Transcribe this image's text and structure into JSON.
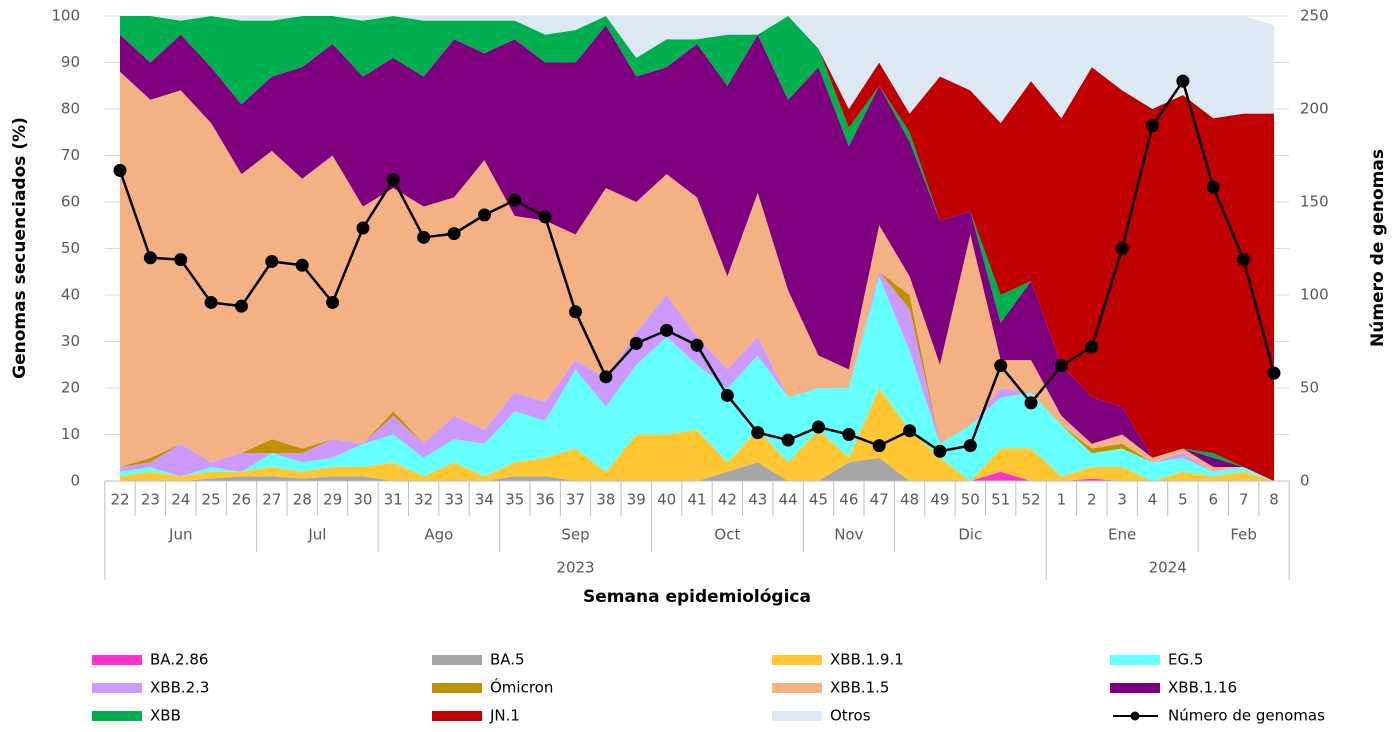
{
  "chart_data": {
    "type": "stacked_area",
    "ylabel": "Genomas secuenciados (%)",
    "y2label": "Número de genomas",
    "xlabel": "Semana epidemiológica",
    "categories": [
      "22",
      "23",
      "24",
      "25",
      "26",
      "27",
      "28",
      "29",
      "30",
      "31",
      "32",
      "33",
      "34",
      "35",
      "36",
      "37",
      "38",
      "39",
      "40",
      "41",
      "42",
      "43",
      "44",
      "45",
      "46",
      "47",
      "48",
      "49",
      "50",
      "51",
      "52",
      "1",
      "2",
      "3",
      "4",
      "5",
      "6",
      "7",
      "8"
    ],
    "months": [
      "Jun",
      "Jun",
      "Jun",
      "Jun",
      "Jun",
      "Jul",
      "Jul",
      "Jul",
      "Jul",
      "Ago",
      "Ago",
      "Ago",
      "Ago",
      "Sep",
      "Sep",
      "Sep",
      "Sep",
      "Sep",
      "Oct",
      "Oct",
      "Oct",
      "Oct",
      "Oct",
      "Nov",
      "Nov",
      "Nov",
      "Dic",
      "Dic",
      "Dic",
      "Dic",
      "Dic",
      "Ene",
      "Ene",
      "Ene",
      "Ene",
      "Ene",
      "Feb",
      "Feb",
      "Feb"
    ],
    "years": [
      "2023",
      "2023",
      "2023",
      "2023",
      "2023",
      "2023",
      "2023",
      "2023",
      "2023",
      "2023",
      "2023",
      "2023",
      "2023",
      "2023",
      "2023",
      "2023",
      "2023",
      "2023",
      "2023",
      "2023",
      "2023",
      "2023",
      "2023",
      "2023",
      "2023",
      "2023",
      "2023",
      "2023",
      "2023",
      "2023",
      "2023",
      "2024",
      "2024",
      "2024",
      "2024",
      "2024",
      "2024",
      "2024",
      "2024"
    ],
    "ylim": [
      0,
      100
    ],
    "yticks": [
      0,
      10,
      20,
      30,
      40,
      50,
      60,
      70,
      80,
      90,
      100
    ],
    "y2lim": [
      0,
      250
    ],
    "y2ticks": [
      0,
      50,
      100,
      150,
      200,
      250
    ],
    "grid": true,
    "legend": "bottom",
    "series": [
      {
        "name": "BA.2.86",
        "color": "#ff33cc",
        "values": [
          0,
          0,
          0,
          0,
          0,
          0,
          0,
          0,
          0,
          0,
          0,
          0,
          0,
          0,
          0,
          0,
          0,
          0,
          0,
          0,
          0,
          0,
          0,
          0,
          0,
          0,
          0,
          0,
          0,
          2,
          0,
          0,
          0.5,
          0,
          0,
          0,
          0,
          0,
          0
        ]
      },
      {
        "name": "BA.5",
        "color": "#a6a6a6",
        "values": [
          0,
          0,
          0,
          0.5,
          1,
          1,
          0.5,
          1,
          1,
          0,
          0,
          0,
          0,
          1,
          1,
          0,
          0,
          0,
          0,
          0,
          2,
          4,
          0,
          0,
          4,
          5,
          0,
          0,
          0,
          0,
          0,
          0,
          0,
          0,
          0,
          0,
          0,
          0,
          0
        ]
      },
      {
        "name": "XBB.1.9.1",
        "color": "#ffc832",
        "values": [
          1,
          2,
          1,
          1.5,
          1,
          2,
          1.5,
          2,
          2,
          4,
          1,
          4,
          1,
          3,
          4,
          7,
          2,
          10,
          10,
          11,
          2,
          7,
          4,
          11,
          1,
          15,
          11,
          5,
          0,
          5,
          7,
          1,
          2.5,
          3,
          0,
          2,
          1,
          2,
          0
        ]
      },
      {
        "name": "EG.5",
        "color": "#66ffff",
        "values": [
          1,
          1,
          0,
          1,
          0,
          3,
          2,
          2,
          5,
          6,
          4,
          5,
          7,
          11,
          8,
          17,
          14,
          15,
          21,
          14,
          16,
          16,
          14,
          9,
          15,
          24,
          17,
          3,
          12,
          11,
          12,
          11,
          3,
          4,
          4,
          3,
          1,
          1,
          0
        ]
      },
      {
        "name": "XBB.2.3",
        "color": "#cc99ff",
        "values": [
          1,
          1,
          7,
          1,
          4,
          0,
          2,
          4,
          0,
          4,
          3,
          5,
          3,
          4,
          4,
          2,
          6,
          7,
          9,
          6,
          4,
          4,
          0,
          0,
          0,
          1,
          9,
          0,
          0,
          2,
          0,
          0,
          0,
          0,
          0,
          1,
          0,
          0,
          0
        ]
      },
      {
        "name": "Ómicron",
        "color": "#bf9000",
        "values": [
          0,
          1,
          0,
          0,
          0,
          3,
          1,
          0,
          0,
          1,
          0,
          0,
          0,
          0,
          0,
          0,
          0,
          0,
          0,
          0,
          0,
          0,
          0,
          0,
          0,
          0,
          3,
          0,
          0,
          0,
          0,
          0,
          1,
          1,
          0,
          0,
          0,
          0,
          0
        ]
      },
      {
        "name": "XBB.1.5",
        "color": "#f4b183",
        "values": [
          85,
          77,
          76,
          73,
          60,
          62,
          58,
          61,
          51,
          48,
          51,
          47,
          58,
          38,
          39,
          27,
          41,
          28,
          26,
          30,
          20,
          31,
          23,
          7,
          4,
          10,
          4,
          17,
          41,
          6,
          7,
          2,
          1,
          2,
          1,
          1,
          1,
          0,
          0
        ]
      },
      {
        "name": "XBB.1.16",
        "color": "#7f007f",
        "values": [
          8,
          8,
          12,
          12,
          15,
          16,
          24,
          24,
          28,
          28,
          28,
          34,
          23,
          38,
          34,
          37,
          35,
          27,
          23,
          33,
          41,
          34,
          41,
          62,
          48,
          30,
          29,
          31,
          5,
          8,
          17,
          11,
          10,
          6,
          0,
          0,
          2,
          0,
          0
        ]
      },
      {
        "name": "XBB",
        "color": "#00b050",
        "values": [
          4,
          10,
          3,
          11,
          18,
          12,
          11,
          6,
          12,
          9,
          12,
          4,
          7,
          4,
          6,
          7,
          2,
          4,
          6,
          1,
          11,
          0,
          18,
          4,
          4,
          0,
          2,
          0,
          0,
          6,
          0,
          0,
          0,
          0,
          0,
          0,
          1,
          0,
          0
        ]
      },
      {
        "name": "JN.1",
        "color": "#c00000",
        "values": [
          0,
          0,
          0,
          0,
          0,
          0,
          0,
          0,
          0,
          0,
          0,
          0,
          0,
          0,
          0,
          0,
          0,
          0,
          0,
          0,
          0,
          0,
          0,
          0,
          4,
          5,
          4,
          31,
          26,
          37,
          43,
          53,
          71,
          68,
          75,
          76,
          72,
          76,
          79
        ]
      },
      {
        "name": "Otros",
        "color": "#dde8f5",
        "values": [
          0,
          0,
          1,
          0,
          1,
          1,
          0,
          0,
          1,
          0,
          1,
          1,
          1,
          1,
          4,
          3,
          0,
          9,
          5,
          5,
          4,
          4,
          0,
          7,
          20,
          10,
          21,
          13,
          16,
          23,
          14,
          22,
          11,
          16,
          20,
          17,
          22,
          21,
          19
        ]
      },
      {
        "name": "Número de genomas",
        "color": "#000000",
        "type": "line",
        "axis": "y2",
        "values": [
          167,
          120,
          119,
          96,
          94,
          118,
          116,
          96,
          136,
          162,
          131,
          133,
          143,
          151,
          142,
          91,
          56,
          74,
          81,
          73,
          46,
          26,
          22,
          29,
          25,
          19,
          27,
          16,
          19,
          62,
          42,
          62,
          72,
          125,
          191,
          215,
          158,
          119,
          58
        ]
      }
    ]
  }
}
